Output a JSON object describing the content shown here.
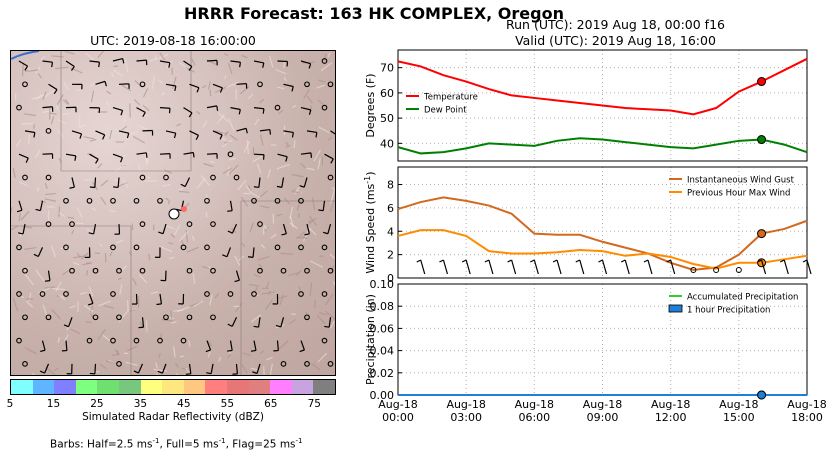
{
  "header": {
    "title": "HRRR Forecast: 163 HK COMPLEX, Oregon",
    "run": "Run (UTC): 2019 Aug 18, 00:00 f16",
    "valid": "Valid (UTC): 2019 Aug 18, 16:00"
  },
  "map": {
    "title": "UTC: 2019-08-18 16:00:00",
    "colorbar_label": "Simulated Radar Reflectivity (dBZ)",
    "colorbar_ticks": [
      "5",
      "15",
      "25",
      "35",
      "45",
      "55",
      "65",
      "75"
    ],
    "colorbar_colors": [
      "#7fffff",
      "#5fb5ff",
      "#7f7fff",
      "#7fff7f",
      "#6fdf6f",
      "#77c77f",
      "#ffff7f",
      "#ffe77f",
      "#ffc77f",
      "#ff7f7f",
      "#e77777",
      "#df7f7f",
      "#ff7fff",
      "#c7a3df",
      "#7f7f7f"
    ],
    "barbs_note": "Barbs: Half=2.5 ms-1, Full=5 ms-1, Flag=25 ms-1",
    "site_marker_color": "#ffffff"
  },
  "chart_data": [
    {
      "type": "line",
      "x": [
        "00:00",
        "01:00",
        "02:00",
        "03:00",
        "04:00",
        "05:00",
        "06:00",
        "07:00",
        "08:00",
        "09:00",
        "10:00",
        "11:00",
        "12:00",
        "13:00",
        "14:00",
        "15:00",
        "16:00",
        "17:00",
        "18:00"
      ],
      "ylabel": "Degrees (F)",
      "ylim": [
        33,
        77
      ],
      "yticks": [
        40,
        50,
        60,
        70
      ],
      "grid": true,
      "legend_position": "center-left",
      "series": [
        {
          "name": "Temperature",
          "color": "#ff0000",
          "values": [
            72.5,
            70.5,
            67.0,
            64.5,
            61.5,
            59.0,
            58.0,
            57.0,
            56.0,
            55.0,
            54.0,
            53.5,
            53.0,
            51.5,
            54.0,
            60.5,
            64.5,
            69.0,
            73.5
          ]
        },
        {
          "name": "Dew Point",
          "color": "#008000",
          "values": [
            38.5,
            36.0,
            36.5,
            38.0,
            40.0,
            39.5,
            39.0,
            41.0,
            42.0,
            41.5,
            40.5,
            39.5,
            38.5,
            38.0,
            39.5,
            41.0,
            41.5,
            39.5,
            36.5
          ]
        }
      ]
    },
    {
      "type": "line",
      "x": [
        "00:00",
        "01:00",
        "02:00",
        "03:00",
        "04:00",
        "05:00",
        "06:00",
        "07:00",
        "08:00",
        "09:00",
        "10:00",
        "11:00",
        "12:00",
        "13:00",
        "14:00",
        "15:00",
        "16:00",
        "17:00",
        "18:00"
      ],
      "ylabel": "Wind Speed (ms-1)",
      "ylim": [
        0,
        9.5
      ],
      "yticks": [
        0,
        2,
        4,
        6,
        8
      ],
      "grid": true,
      "legend_position": "top-right",
      "series": [
        {
          "name": "Instantaneous Wind Gust",
          "color": "#d2691e",
          "values": [
            5.9,
            6.5,
            6.9,
            6.6,
            6.2,
            5.5,
            3.8,
            3.7,
            3.7,
            3.1,
            2.6,
            2.1,
            1.3,
            0.7,
            0.9,
            2.0,
            3.8,
            4.2,
            4.9
          ]
        },
        {
          "name": "Previous Hour Max Wind",
          "color": "#ff8c00",
          "values": [
            3.6,
            4.1,
            4.1,
            3.6,
            2.3,
            2.1,
            2.1,
            2.2,
            2.4,
            2.3,
            1.9,
            2.1,
            1.8,
            1.2,
            0.8,
            1.3,
            1.3,
            1.6,
            1.9
          ]
        }
      ]
    },
    {
      "type": "line",
      "x": [
        "00:00",
        "01:00",
        "02:00",
        "03:00",
        "04:00",
        "05:00",
        "06:00",
        "07:00",
        "08:00",
        "09:00",
        "10:00",
        "11:00",
        "12:00",
        "13:00",
        "14:00",
        "15:00",
        "16:00",
        "17:00",
        "18:00"
      ],
      "ylabel": "Precipitation (in)",
      "ylim": [
        0,
        0.1
      ],
      "yticks": [
        0.0,
        0.02,
        0.04,
        0.06,
        0.08,
        0.1
      ],
      "ytick_labels": [
        "0.00",
        "0.02",
        "0.04",
        "0.06",
        "0.08",
        "0.10"
      ],
      "grid": true,
      "legend_position": "top-right",
      "series": [
        {
          "name": "Accumulated Precipitation",
          "color": "#32cd32",
          "values": [
            0,
            0,
            0,
            0,
            0,
            0,
            0,
            0,
            0,
            0,
            0,
            0,
            0,
            0,
            0,
            0,
            0,
            0,
            0
          ]
        },
        {
          "name": "1 hour Precipitation",
          "color": "#1e7fd8",
          "values": [
            0,
            0,
            0,
            0,
            0,
            0,
            0,
            0,
            0,
            0,
            0,
            0,
            0,
            0,
            0,
            0,
            0,
            0,
            0
          ]
        }
      ],
      "xtick_labels": [
        [
          "Aug-18",
          "00:00"
        ],
        [
          "Aug-18",
          "03:00"
        ],
        [
          "Aug-18",
          "06:00"
        ],
        [
          "Aug-18",
          "09:00"
        ],
        [
          "Aug-18",
          "12:00"
        ],
        [
          "Aug-18",
          "15:00"
        ],
        [
          "Aug-18",
          "18:00"
        ]
      ]
    }
  ],
  "valid_hour_index": 16
}
